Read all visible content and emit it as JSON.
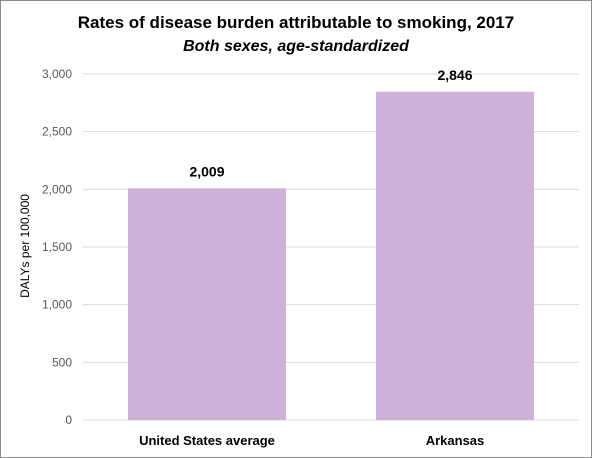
{
  "chart_data": {
    "type": "bar",
    "title": "Rates of disease burden attributable to smoking, 2017",
    "subtitle": "Both sexes, age-standardized",
    "ylabel": "DALYs per 100,000",
    "xlabel": "",
    "categories": [
      "United States average",
      "Arkansas"
    ],
    "values": [
      2009,
      2846
    ],
    "data_labels": [
      "2,009",
      "2,846"
    ],
    "ylim": [
      0,
      3000
    ],
    "yticks": [
      0,
      500,
      1000,
      1500,
      2000,
      2500,
      3000
    ],
    "ytick_labels": [
      "0",
      "500",
      "1,000",
      "1,500",
      "2,000",
      "2,500",
      "3,000"
    ],
    "grid": true,
    "legend": "none",
    "bar_color": "#CDB1D8",
    "grid_color": "#D9D9D9"
  }
}
